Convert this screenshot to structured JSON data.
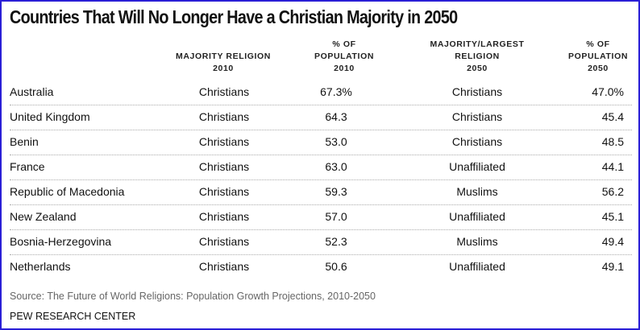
{
  "chart_data": {
    "type": "table",
    "title": "Countries That Will No Longer Have a Christian Majority in 2050",
    "columns": [
      {
        "lines": [
          "MAJORITY RELIGION",
          "2010"
        ]
      },
      {
        "lines": [
          "% OF",
          "POPULATION",
          "2010"
        ]
      },
      {
        "lines": [
          "MAJORITY/LARGEST",
          "RELIGION",
          "2050"
        ]
      },
      {
        "lines": [
          "% OF",
          "POPULATION",
          "2050"
        ]
      }
    ],
    "rows": [
      {
        "country": "Australia",
        "religion_2010": "Christians",
        "pct_2010": "67.3%",
        "religion_2050": "Christians",
        "pct_2050": "47.0%"
      },
      {
        "country": "United Kingdom",
        "religion_2010": "Christians",
        "pct_2010": "64.3",
        "religion_2050": "Christians",
        "pct_2050": "45.4"
      },
      {
        "country": "Benin",
        "religion_2010": "Christians",
        "pct_2010": "53.0",
        "religion_2050": "Christians",
        "pct_2050": "48.5"
      },
      {
        "country": "France",
        "religion_2010": "Christians",
        "pct_2010": "63.0",
        "religion_2050": "Unaffiliated",
        "pct_2050": "44.1"
      },
      {
        "country": "Republic of Macedonia",
        "religion_2010": "Christians",
        "pct_2010": "59.3",
        "religion_2050": "Muslims",
        "pct_2050": "56.2"
      },
      {
        "country": "New Zealand",
        "religion_2010": "Christians",
        "pct_2010": "57.0",
        "religion_2050": "Unaffiliated",
        "pct_2050": "45.1"
      },
      {
        "country": "Bosnia-Herzegovina",
        "religion_2010": "Christians",
        "pct_2010": "52.3",
        "religion_2050": "Muslims",
        "pct_2050": "49.4"
      },
      {
        "country": "Netherlands",
        "religion_2010": "Christians",
        "pct_2010": "50.6",
        "religion_2050": "Unaffiliated",
        "pct_2050": "49.1"
      }
    ],
    "source": "Source: The Future of World Religions: Population Growth Projections, 2010-2050",
    "brand": "PEW RESEARCH CENTER"
  },
  "colors": {
    "border": "#2a1fd6"
  }
}
